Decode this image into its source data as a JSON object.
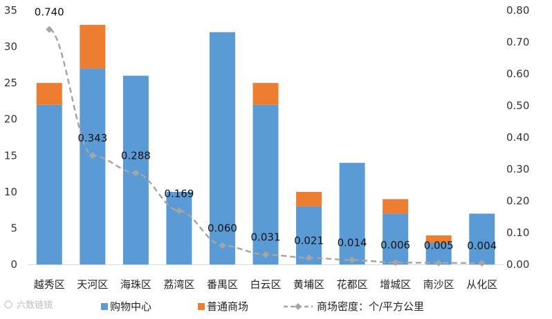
{
  "chart_data": {
    "type": "bar",
    "categories": [
      "越秀区",
      "天河区",
      "海珠区",
      "荔湾区",
      "番禺区",
      "白云区",
      "黄埔区",
      "花都区",
      "增城区",
      "南沙区",
      "从化区"
    ],
    "series": [
      {
        "name": "购物中心",
        "type": "bar",
        "stacked": true,
        "axis": "left",
        "color": "#5B9BD5",
        "values": [
          22,
          27,
          26,
          10,
          32,
          22,
          8,
          14,
          7,
          3,
          7
        ]
      },
      {
        "name": "普通商场",
        "type": "bar",
        "stacked": true,
        "axis": "left",
        "color": "#ED7D31",
        "values": [
          3,
          6,
          0,
          0,
          0,
          3,
          2,
          0,
          2,
          1,
          0
        ]
      },
      {
        "name": "商场密度：个/平方公里",
        "type": "line",
        "axis": "right",
        "color": "#A5A5A5",
        "line_style": "dashed",
        "marker": "diamond",
        "values": [
          0.74,
          0.343,
          0.288,
          0.169,
          0.06,
          0.031,
          0.021,
          0.014,
          0.006,
          0.005,
          0.004
        ],
        "labels": [
          "0.740",
          "0.343",
          "0.288",
          "0.169",
          "0.060",
          "0.031",
          "0.021",
          "0.014",
          "0.006",
          "0.005",
          "0.004"
        ]
      }
    ],
    "y_left": {
      "ylim": [
        0,
        35
      ],
      "ticks": [
        "0",
        "5",
        "10",
        "15",
        "20",
        "25",
        "30",
        "35"
      ]
    },
    "y_right": {
      "ylim": [
        0,
        0.8
      ],
      "ticks": [
        "0.00",
        "0.10",
        "0.20",
        "0.30",
        "0.40",
        "0.50",
        "0.60",
        "0.70",
        "0.80"
      ]
    },
    "grid": false,
    "legend_position": "bottom"
  },
  "watermark": "六数链镜"
}
